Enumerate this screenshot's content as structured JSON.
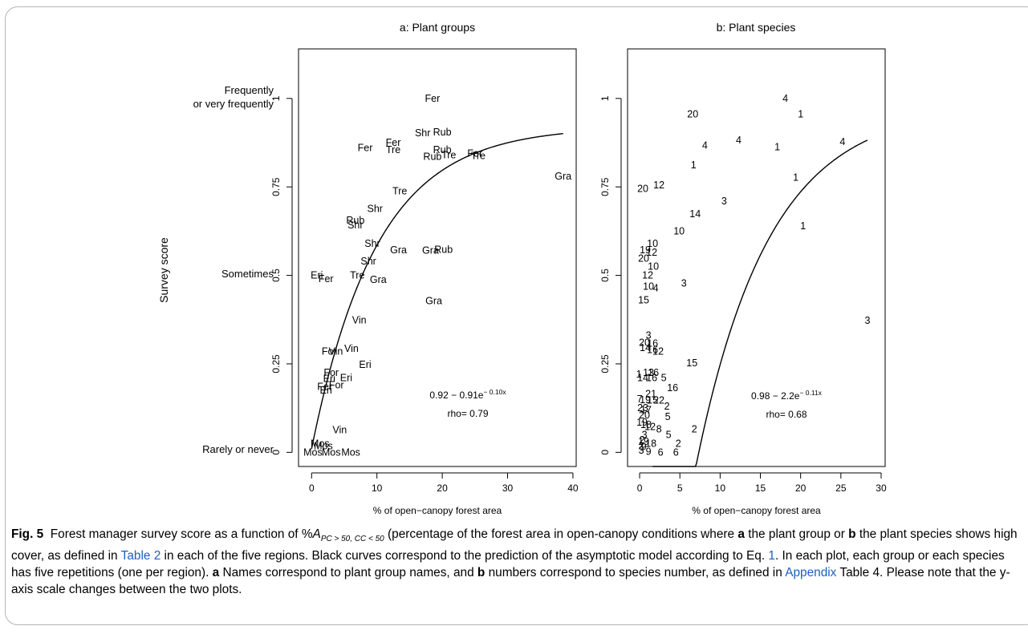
{
  "y_labels_left": {
    "frequent_line1": "Frequently",
    "frequent_line2": "or very frequently",
    "sometimes": "Sometimes",
    "rarely": "Rarely or never"
  },
  "caption": {
    "fig_label": "Fig. 5",
    "text1": "Forest manager survey score as a function of %",
    "sym_A": "A",
    "sym_sub": "PC > 50, CC < 50",
    "text2": " (percentage of the forest area in open-canopy conditions where ",
    "a": "a",
    "text3": " the plant group or ",
    "b": "b",
    "text4": " the plant species shows high cover, as defined in ",
    "link_table2": "Table 2",
    "text5": " in each of the five regions. Black curves correspond to the prediction of the asymptotic model according to Eq. ",
    "link_eq1": "1",
    "text6": ". In each plot, each group or each species has five repetitions (one per region). ",
    "a2": "a",
    "text7": " Names correspond to plant group names, and ",
    "b2": "b",
    "text8": " numbers correspond to species number, as defined in ",
    "link_appendix": "Appendix",
    "text9": " Table 4. Please note that the y-axis scale changes between the two plots."
  },
  "chart_data": [
    {
      "type": "scatter",
      "title": "a: Plant groups",
      "xlabel": "% of open−canopy forest area",
      "ylabel": "Survey score",
      "xlim": [
        -2,
        40.5
      ],
      "ylim": [
        -0.04,
        1.14
      ],
      "xticks": [
        0,
        10,
        20,
        30,
        40
      ],
      "yticks": [
        0,
        0.25,
        0.5,
        0.75,
        1
      ],
      "ytick_labels": [
        "0",
        "0.25",
        "0.5",
        "0.75",
        "1"
      ],
      "equation_text": "0.92 − 0.91e",
      "equation_exp": "− 0.10x",
      "rho_text": "rho= 0.79",
      "curve": {
        "a": 0.92,
        "b": 0.91,
        "k": 0.1,
        "x_start": 0,
        "x_end": 38.5
      },
      "points": [
        {
          "label": "Fer",
          "x": 18.5,
          "y": 1.0
        },
        {
          "label": "Shr",
          "x": 17.0,
          "y": 0.902
        },
        {
          "label": "Rub",
          "x": 20.0,
          "y": 0.905
        },
        {
          "label": "Fer",
          "x": 12.5,
          "y": 0.875
        },
        {
          "label": "Tre",
          "x": 12.5,
          "y": 0.855
        },
        {
          "label": "Fer",
          "x": 8.2,
          "y": 0.86
        },
        {
          "label": "Rub",
          "x": 20.0,
          "y": 0.855
        },
        {
          "label": "Tre",
          "x": 21.0,
          "y": 0.84
        },
        {
          "label": "Rub",
          "x": 18.5,
          "y": 0.835
        },
        {
          "label": "Fer",
          "x": 25.0,
          "y": 0.845
        },
        {
          "label": "Tre",
          "x": 25.5,
          "y": 0.838
        },
        {
          "label": "Gra",
          "x": 38.5,
          "y": 0.78
        },
        {
          "label": "Tre",
          "x": 13.5,
          "y": 0.738
        },
        {
          "label": "Shr",
          "x": 9.7,
          "y": 0.688
        },
        {
          "label": "Rub",
          "x": 6.7,
          "y": 0.655
        },
        {
          "label": "Shr",
          "x": 6.7,
          "y": 0.642
        },
        {
          "label": "Shr",
          "x": 9.3,
          "y": 0.59
        },
        {
          "label": "Gra",
          "x": 13.3,
          "y": 0.572
        },
        {
          "label": "Gra",
          "x": 18.2,
          "y": 0.57
        },
        {
          "label": "Rub",
          "x": 20.2,
          "y": 0.573
        },
        {
          "label": "Shr",
          "x": 8.7,
          "y": 0.54
        },
        {
          "label": "Eri",
          "x": 0.8,
          "y": 0.5
        },
        {
          "label": "Fer",
          "x": 2.2,
          "y": 0.49
        },
        {
          "label": "Tre",
          "x": 7.0,
          "y": 0.5
        },
        {
          "label": "Gra",
          "x": 10.2,
          "y": 0.488
        },
        {
          "label": "Gra",
          "x": 18.7,
          "y": 0.428
        },
        {
          "label": "Vin",
          "x": 7.3,
          "y": 0.373
        },
        {
          "label": "For",
          "x": 2.7,
          "y": 0.285
        },
        {
          "label": "Vin",
          "x": 3.7,
          "y": 0.285
        },
        {
          "label": "Vin",
          "x": 6.1,
          "y": 0.293
        },
        {
          "label": "Eri",
          "x": 8.2,
          "y": 0.248
        },
        {
          "label": "For",
          "x": 3.0,
          "y": 0.225
        },
        {
          "label": "Eri",
          "x": 5.3,
          "y": 0.21
        },
        {
          "label": "Eri",
          "x": 2.7,
          "y": 0.208
        },
        {
          "label": "Fer",
          "x": 2.0,
          "y": 0.185
        },
        {
          "label": "For",
          "x": 3.8,
          "y": 0.19
        },
        {
          "label": "Eri",
          "x": 2.2,
          "y": 0.175
        },
        {
          "label": "Vin",
          "x": 4.3,
          "y": 0.063
        },
        {
          "label": "Mos",
          "x": 1.3,
          "y": 0.025
        },
        {
          "label": "Mos",
          "x": 1.8,
          "y": 0.018
        },
        {
          "label": "Mos",
          "x": 0.2,
          "y": 0.0
        },
        {
          "label": "Mos",
          "x": 3.0,
          "y": 0.0
        },
        {
          "label": "Mos",
          "x": 6.0,
          "y": 0.0
        }
      ]
    },
    {
      "type": "scatter",
      "title": "b: Plant species",
      "xlabel": "% of open−canopy forest area",
      "ylabel": "",
      "xlim": [
        -1.5,
        30.5
      ],
      "ylim": [
        -0.04,
        1.14
      ],
      "xticks": [
        0,
        5,
        10,
        15,
        20,
        25,
        30
      ],
      "yticks": [
        0,
        0.25,
        0.5,
        0.75,
        1
      ],
      "ytick_labels": [
        "0",
        "0.25",
        "0.5",
        "0.75",
        "1"
      ],
      "equation_text": "0.98 − 2.2e",
      "equation_exp": "− 0.11x",
      "rho_text": "rho= 0.68",
      "curve": {
        "a": 0.98,
        "b": 2.2,
        "k": 0.11,
        "x_start": 1.6,
        "x_end": 28.3
      },
      "points": [
        {
          "label": "4",
          "x": 18.1,
          "y": 1.0
        },
        {
          "label": "1",
          "x": 20.0,
          "y": 0.955
        },
        {
          "label": "20",
          "x": 6.6,
          "y": 0.955
        },
        {
          "label": "4",
          "x": 12.3,
          "y": 0.882
        },
        {
          "label": "4",
          "x": 8.1,
          "y": 0.867
        },
        {
          "label": "1",
          "x": 17.1,
          "y": 0.862
        },
        {
          "label": "4",
          "x": 25.2,
          "y": 0.877
        },
        {
          "label": "1",
          "x": 6.7,
          "y": 0.812
        },
        {
          "label": "1",
          "x": 19.4,
          "y": 0.777
        },
        {
          "label": "12",
          "x": 2.4,
          "y": 0.755
        },
        {
          "label": "20",
          "x": 0.4,
          "y": 0.745
        },
        {
          "label": "3",
          "x": 10.5,
          "y": 0.71
        },
        {
          "label": "14",
          "x": 6.9,
          "y": 0.673
        },
        {
          "label": "1",
          "x": 20.3,
          "y": 0.64
        },
        {
          "label": "10",
          "x": 4.9,
          "y": 0.625
        },
        {
          "label": "10",
          "x": 1.6,
          "y": 0.59
        },
        {
          "label": "19",
          "x": 0.7,
          "y": 0.572
        },
        {
          "label": "12",
          "x": 1.5,
          "y": 0.565
        },
        {
          "label": "20",
          "x": 0.5,
          "y": 0.548
        },
        {
          "label": "10",
          "x": 1.7,
          "y": 0.525
        },
        {
          "label": "12",
          "x": 1.0,
          "y": 0.5
        },
        {
          "label": "3",
          "x": 5.5,
          "y": 0.478
        },
        {
          "label": "10",
          "x": 1.1,
          "y": 0.468
        },
        {
          "label": "4",
          "x": 2.0,
          "y": 0.464
        },
        {
          "label": "15",
          "x": 0.5,
          "y": 0.43
        },
        {
          "label": "3",
          "x": 28.3,
          "y": 0.372
        },
        {
          "label": "3",
          "x": 1.1,
          "y": 0.33
        },
        {
          "label": "20",
          "x": 0.6,
          "y": 0.31
        },
        {
          "label": "16",
          "x": 1.6,
          "y": 0.308
        },
        {
          "label": "14",
          "x": 0.7,
          "y": 0.295
        },
        {
          "label": "16",
          "x": 1.6,
          "y": 0.29
        },
        {
          "label": "12",
          "x": 2.3,
          "y": 0.285
        },
        {
          "label": "15",
          "x": 6.5,
          "y": 0.252
        },
        {
          "label": "1",
          "x": -0.1,
          "y": 0.22
        },
        {
          "label": "13",
          "x": 1.1,
          "y": 0.225
        },
        {
          "label": "16",
          "x": 1.7,
          "y": 0.225
        },
        {
          "label": "14",
          "x": 0.4,
          "y": 0.21
        },
        {
          "label": "16",
          "x": 1.5,
          "y": 0.21
        },
        {
          "label": "5",
          "x": 3.0,
          "y": 0.21
        },
        {
          "label": "16",
          "x": 4.1,
          "y": 0.182
        },
        {
          "label": "21",
          "x": 1.4,
          "y": 0.165
        },
        {
          "label": "7",
          "x": 0.0,
          "y": 0.15
        },
        {
          "label": "19",
          "x": 0.7,
          "y": 0.148
        },
        {
          "label": "22",
          "x": 2.4,
          "y": 0.147
        },
        {
          "label": "15",
          "x": 1.6,
          "y": 0.147
        },
        {
          "label": "2",
          "x": 3.4,
          "y": 0.13
        },
        {
          "label": "23",
          "x": 0.4,
          "y": 0.125
        },
        {
          "label": "17",
          "x": 0.8,
          "y": 0.12
        },
        {
          "label": "5",
          "x": 3.5,
          "y": 0.1
        },
        {
          "label": "20",
          "x": 0.6,
          "y": 0.105
        },
        {
          "label": "19",
          "x": 0.3,
          "y": 0.085
        },
        {
          "label": "18",
          "x": 0.8,
          "y": 0.078
        },
        {
          "label": "12",
          "x": 1.3,
          "y": 0.072
        },
        {
          "label": "8",
          "x": 2.4,
          "y": 0.065
        },
        {
          "label": "2",
          "x": 6.8,
          "y": 0.065
        },
        {
          "label": "5",
          "x": 3.6,
          "y": 0.05
        },
        {
          "label": "3",
          "x": 0.6,
          "y": 0.05
        },
        {
          "label": "2",
          "x": 0.3,
          "y": 0.035
        },
        {
          "label": "19",
          "x": 0.5,
          "y": 0.03
        },
        {
          "label": "2",
          "x": 4.8,
          "y": 0.025
        },
        {
          "label": "18",
          "x": 1.4,
          "y": 0.024
        },
        {
          "label": "2",
          "x": 0.2,
          "y": 0.018
        },
        {
          "label": "9",
          "x": 0.5,
          "y": 0.015
        },
        {
          "label": "6",
          "x": 2.6,
          "y": 0.0
        },
        {
          "label": "6",
          "x": 4.5,
          "y": 0.0
        },
        {
          "label": "9",
          "x": 1.1,
          "y": 0.002
        },
        {
          "label": "3",
          "x": 0.2,
          "y": 0.005
        }
      ]
    }
  ]
}
